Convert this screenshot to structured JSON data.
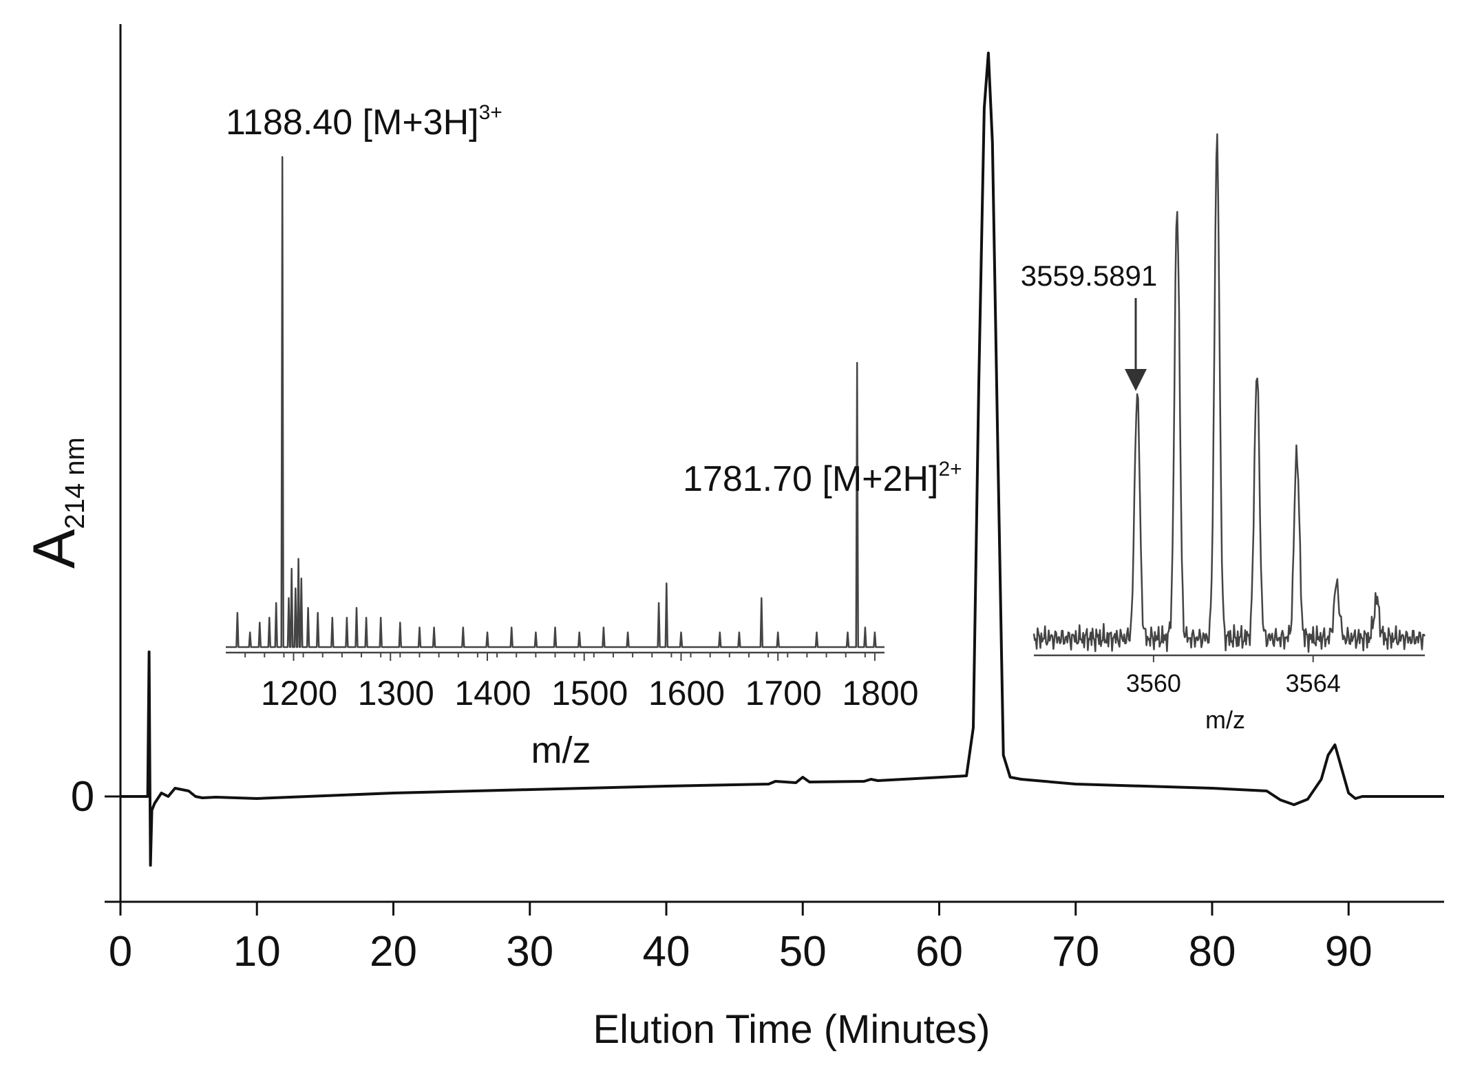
{
  "chart_data": [
    {
      "type": "line",
      "name": "chromatogram",
      "title": "",
      "xlabel": "Elution Time (Minutes)",
      "ylabel_main": "A",
      "ylabel_sub": "214 nm",
      "xlim": [
        0,
        97
      ],
      "ylim": [
        -0.15,
        1.15
      ],
      "xticks": [
        0,
        10,
        20,
        30,
        40,
        50,
        60,
        70,
        80,
        90
      ],
      "ytick_label": "0",
      "series": [
        {
          "name": "A214 trace",
          "x": [
            0,
            2.0,
            2.1,
            2.15,
            2.2,
            2.3,
            2.5,
            3.0,
            3.5,
            4.0,
            4.5,
            5.0,
            5.5,
            6.0,
            7.0,
            10,
            20,
            30,
            40,
            47.5,
            48,
            49.5,
            50,
            50.5,
            54.5,
            55,
            55.5,
            62.0,
            62.5,
            62.9,
            63.3,
            63.6,
            63.9,
            64.3,
            64.7,
            65.2,
            66,
            70,
            80,
            84,
            85,
            86,
            87,
            88,
            88.5,
            89.0,
            89.5,
            90.0,
            90.5,
            91,
            93,
            97
          ],
          "y": [
            0,
            0,
            0.21,
            0.05,
            -0.1,
            -0.02,
            -0.01,
            0.005,
            0,
            0.012,
            0.01,
            0.008,
            0,
            -0.002,
            -0.001,
            -0.003,
            0.005,
            0.01,
            0.015,
            0.018,
            0.022,
            0.02,
            0.028,
            0.021,
            0.022,
            0.025,
            0.023,
            0.03,
            0.1,
            0.6,
            1.0,
            1.08,
            0.95,
            0.5,
            0.06,
            0.028,
            0.025,
            0.018,
            0.012,
            0.008,
            -0.005,
            -0.012,
            -0.004,
            0.025,
            0.06,
            0.075,
            0.04,
            0.005,
            -0.003,
            0,
            0,
            0
          ]
        }
      ]
    },
    {
      "type": "line",
      "name": "inset-ms-full",
      "xlabel": "m/z",
      "xlim": [
        1130,
        1810
      ],
      "xticks": [
        1200,
        1300,
        1400,
        1500,
        1600,
        1700,
        1800
      ],
      "annotations": [
        {
          "label": "1188.40 [M+3H]",
          "charge": "3+",
          "x": 1188.4
        },
        {
          "label": "1781.70 [M+2H]",
          "charge": "2+",
          "x": 1781.7
        }
      ],
      "series": [
        {
          "name": "mass spectrum",
          "peaks_x": [
            1142,
            1155,
            1165,
            1175,
            1182,
            1188.4,
            1195,
            1198,
            1202,
            1205,
            1208,
            1215,
            1225,
            1240,
            1255,
            1265,
            1275,
            1290,
            1310,
            1330,
            1345,
            1375,
            1400,
            1425,
            1450,
            1470,
            1495,
            1520,
            1545,
            1577,
            1585,
            1600,
            1640,
            1660,
            1683,
            1700,
            1740,
            1772,
            1781.7,
            1790,
            1800
          ],
          "peaks_y": [
            0.07,
            0.03,
            0.05,
            0.06,
            0.09,
            1.0,
            0.1,
            0.16,
            0.12,
            0.18,
            0.14,
            0.08,
            0.07,
            0.06,
            0.06,
            0.08,
            0.06,
            0.06,
            0.05,
            0.04,
            0.04,
            0.04,
            0.03,
            0.04,
            0.03,
            0.04,
            0.03,
            0.04,
            0.03,
            0.09,
            0.13,
            0.03,
            0.03,
            0.03,
            0.1,
            0.03,
            0.03,
            0.03,
            0.58,
            0.04,
            0.03
          ]
        }
      ]
    },
    {
      "type": "line",
      "name": "inset-ms-isotope",
      "xlabel": "m/z",
      "xlim": [
        3557.0,
        3566.8
      ],
      "xticks": [
        3560,
        3564
      ],
      "annotations": [
        {
          "label": "3559.5891",
          "x": 3559.5891,
          "style": "arrow"
        }
      ],
      "series": [
        {
          "name": "isotope envelope",
          "peaks_x": [
            3559.59,
            3560.59,
            3561.59,
            3562.59,
            3563.59,
            3564.59,
            3565.59
          ],
          "peaks_y": [
            0.5,
            0.87,
            1.0,
            0.54,
            0.38,
            0.11,
            0.08
          ]
        }
      ]
    }
  ]
}
